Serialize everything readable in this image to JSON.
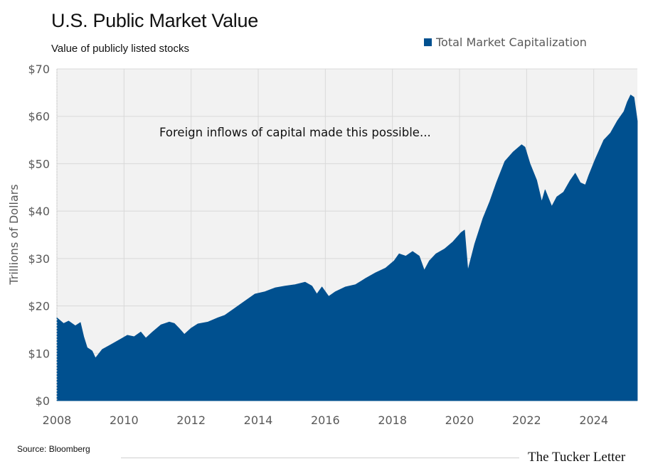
{
  "title": "U.S. Public Market Value",
  "subtitle": "Value of publicly listed stocks",
  "source": "Source: Bloomberg",
  "brand": "The Tucker Letter",
  "colors": {
    "area": "#00508f",
    "plot_background": "#f2f2f2",
    "grid": "#d9d9d9",
    "axis_text": "#595959"
  },
  "chart_data": {
    "type": "area",
    "title": "U.S. Public Market Value",
    "subtitle": "Value of publicly listed stocks",
    "ylabel": "Trillions of Dollars",
    "xlabel": "",
    "xlim": [
      2008.0,
      2025.3
    ],
    "ylim": [
      0,
      70
    ],
    "legend": "top-right",
    "grid": true,
    "annotation": "Foreign inflows of capital made this possible...",
    "x_ticks": [
      2008,
      2010,
      2012,
      2014,
      2016,
      2018,
      2020,
      2022,
      2024
    ],
    "x_tick_labels": [
      "2008",
      "2010",
      "2012",
      "2014",
      "2016",
      "2018",
      "2020",
      "2022",
      "2024"
    ],
    "y_ticks": [
      0,
      10,
      20,
      30,
      40,
      50,
      60,
      70
    ],
    "y_tick_labels": [
      "$0",
      "$10",
      "$20",
      "$30",
      "$40",
      "$50",
      "$60",
      "$70"
    ],
    "series": [
      {
        "name": "Total Market Capitalization",
        "x": [
          2008.0,
          2008.2,
          2008.35,
          2008.55,
          2008.7,
          2008.8,
          2008.9,
          2009.05,
          2009.15,
          2009.35,
          2009.6,
          2009.9,
          2010.1,
          2010.3,
          2010.5,
          2010.65,
          2010.85,
          2011.1,
          2011.35,
          2011.5,
          2011.65,
          2011.8,
          2012.0,
          2012.2,
          2012.5,
          2012.8,
          2013.0,
          2013.3,
          2013.6,
          2013.9,
          2014.2,
          2014.5,
          2014.8,
          2015.1,
          2015.4,
          2015.6,
          2015.75,
          2015.9,
          2016.1,
          2016.3,
          2016.6,
          2016.9,
          2017.2,
          2017.5,
          2017.8,
          2018.05,
          2018.2,
          2018.4,
          2018.6,
          2018.8,
          2018.95,
          2019.1,
          2019.3,
          2019.55,
          2019.8,
          2020.05,
          2020.15,
          2020.25,
          2020.45,
          2020.7,
          2020.9,
          2021.1,
          2021.35,
          2021.6,
          2021.85,
          2021.95,
          2022.1,
          2022.3,
          2022.45,
          2022.55,
          2022.75,
          2022.9,
          2023.1,
          2023.3,
          2023.45,
          2023.6,
          2023.75,
          2023.85,
          2024.05,
          2024.3,
          2024.5,
          2024.7,
          2024.9,
          2025.0,
          2025.1,
          2025.2,
          2025.3
        ],
        "values": [
          17.5,
          16.3,
          16.8,
          15.8,
          16.5,
          13.5,
          11.2,
          10.5,
          9.0,
          10.8,
          11.8,
          13.0,
          13.8,
          13.5,
          14.5,
          13.2,
          14.5,
          16.0,
          16.6,
          16.3,
          15.2,
          14.0,
          15.3,
          16.2,
          16.6,
          17.5,
          18.0,
          19.5,
          21.0,
          22.5,
          23.0,
          23.8,
          24.2,
          24.5,
          25.0,
          24.2,
          22.5,
          24.0,
          22.0,
          23.0,
          24.0,
          24.5,
          25.8,
          27.0,
          28.0,
          29.5,
          31.0,
          30.5,
          31.5,
          30.5,
          27.5,
          29.5,
          31.0,
          32.0,
          33.5,
          35.5,
          36.0,
          27.5,
          33.0,
          38.5,
          42.0,
          46.0,
          50.5,
          52.5,
          54.0,
          53.5,
          50.0,
          46.5,
          42.0,
          44.5,
          41.0,
          43.0,
          44.0,
          46.5,
          48.0,
          46.0,
          45.5,
          47.5,
          51.0,
          55.0,
          56.5,
          59.0,
          61.0,
          63.0,
          64.5,
          64.0,
          59.0
        ]
      }
    ]
  }
}
